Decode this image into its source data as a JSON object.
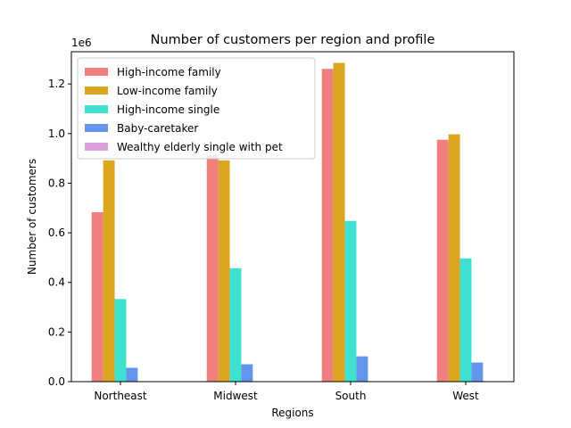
{
  "chart_data": {
    "type": "bar",
    "title": "Number of customers per region and profile",
    "xlabel": "Regions",
    "ylabel": "Number of customers",
    "y_offset_label": "1e6",
    "categories": [
      "Northeast",
      "Midwest",
      "South",
      "West"
    ],
    "series": [
      {
        "name": "High-income family",
        "color": "#f08080",
        "values": [
          683000,
          913000,
          1261000,
          975000
        ]
      },
      {
        "name": "Low-income family",
        "color": "#daa520",
        "values": [
          892000,
          892000,
          1285000,
          997000
        ]
      },
      {
        "name": "High-income single",
        "color": "#40e0d0",
        "values": [
          333000,
          457000,
          648000,
          497000
        ]
      },
      {
        "name": "Baby-caretaker",
        "color": "#6495ed",
        "values": [
          56000,
          70000,
          102000,
          77000
        ]
      },
      {
        "name": "Wealthy elderly single with pet",
        "color": "#dda0dd",
        "values": [
          0,
          0,
          0,
          0
        ]
      }
    ],
    "ylim": [
      0,
      1330000
    ],
    "yticks": [
      0,
      200000,
      400000,
      600000,
      800000,
      1000000,
      1200000
    ],
    "ytick_labels": [
      "0.0",
      "0.2",
      "0.4",
      "0.6",
      "0.8",
      "1.0",
      "1.2"
    ],
    "grid": false,
    "legend_position": "top-left"
  }
}
